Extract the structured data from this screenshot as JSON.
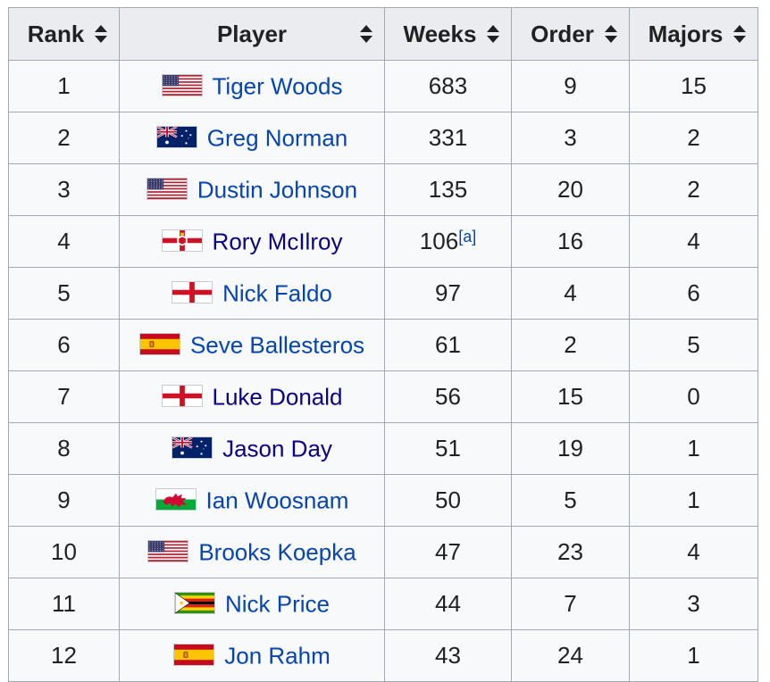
{
  "headers": {
    "rank": "Rank",
    "player": "Player",
    "weeks": "Weeks",
    "order": "Order",
    "majors": "Majors"
  },
  "rows": [
    {
      "rank": "1",
      "flag": "usa-flag-icon",
      "player": "Tiger Woods",
      "weeks": "683",
      "weeks_note": "",
      "order": "9",
      "majors": "15",
      "visited": false
    },
    {
      "rank": "2",
      "flag": "australia-flag-icon",
      "player": "Greg Norman",
      "weeks": "331",
      "weeks_note": "",
      "order": "3",
      "majors": "2",
      "visited": false
    },
    {
      "rank": "3",
      "flag": "usa-flag-icon",
      "player": "Dustin Johnson",
      "weeks": "135",
      "weeks_note": "",
      "order": "20",
      "majors": "2",
      "visited": false
    },
    {
      "rank": "4",
      "flag": "northern-ireland-flag-icon",
      "player": "Rory McIlroy",
      "weeks": "106",
      "weeks_note": "[a]",
      "order": "16",
      "majors": "4",
      "visited": true
    },
    {
      "rank": "5",
      "flag": "england-flag-icon",
      "player": "Nick Faldo",
      "weeks": "97",
      "weeks_note": "",
      "order": "4",
      "majors": "6",
      "visited": false
    },
    {
      "rank": "6",
      "flag": "spain-flag-icon",
      "player": "Seve Ballesteros",
      "weeks": "61",
      "weeks_note": "",
      "order": "2",
      "majors": "5",
      "visited": false
    },
    {
      "rank": "7",
      "flag": "england-flag-icon",
      "player": "Luke Donald",
      "weeks": "56",
      "weeks_note": "",
      "order": "15",
      "majors": "0",
      "visited": true
    },
    {
      "rank": "8",
      "flag": "australia-flag-icon",
      "player": "Jason Day",
      "weeks": "51",
      "weeks_note": "",
      "order": "19",
      "majors": "1",
      "visited": true
    },
    {
      "rank": "9",
      "flag": "wales-flag-icon",
      "player": "Ian Woosnam",
      "weeks": "50",
      "weeks_note": "",
      "order": "5",
      "majors": "1",
      "visited": false
    },
    {
      "rank": "10",
      "flag": "usa-flag-icon",
      "player": "Brooks Koepka",
      "weeks": "47",
      "weeks_note": "",
      "order": "23",
      "majors": "4",
      "visited": false
    },
    {
      "rank": "11",
      "flag": "zimbabwe-flag-icon",
      "player": "Nick Price",
      "weeks": "44",
      "weeks_note": "",
      "order": "7",
      "majors": "3",
      "visited": false
    },
    {
      "rank": "12",
      "flag": "spain-flag-icon",
      "player": "Jon Rahm",
      "weeks": "43",
      "weeks_note": "",
      "order": "24",
      "majors": "1",
      "visited": false
    }
  ],
  "colors": {
    "link": "#0645ad",
    "visited_link": "#0b0080",
    "header_bg": "#eaecf0",
    "cell_bg": "#f8f9fa",
    "border": "#a2a9b1"
  }
}
